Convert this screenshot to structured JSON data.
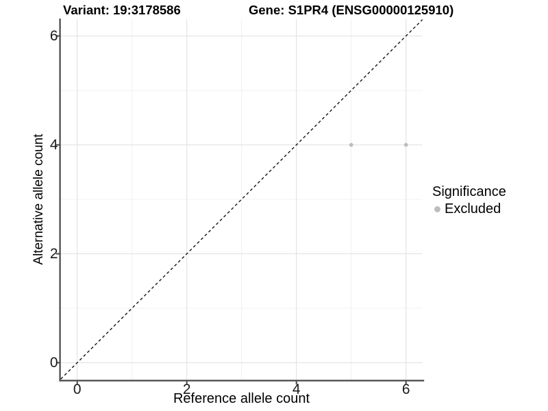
{
  "titles": {
    "variant": "Variant: 19:3178586",
    "gene": "Gene: S1PR4 (ENSG00000125910)"
  },
  "axes": {
    "x": {
      "label": "Reference allele count",
      "ticks": [
        0,
        2,
        4,
        6
      ],
      "minor_ticks": [
        1,
        3,
        5
      ]
    },
    "y": {
      "label": "Alternative allele count",
      "ticks": [
        0,
        2,
        4,
        6
      ],
      "minor_ticks": [
        1,
        3,
        5
      ]
    }
  },
  "legend": {
    "title": "Significance",
    "items": [
      {
        "label": "Excluded",
        "color": "#bdbdbd"
      }
    ]
  },
  "colors": {
    "point_excluded": "#bdbdbd",
    "axis_line": "#464646",
    "major_grid": "#e4e4e4",
    "minor_grid": "#f0f0f0",
    "reference_line": "#141414",
    "background": "#ffffff"
  },
  "chart_data": {
    "type": "scatter",
    "title": "Variant: 19:3178586 | Gene: S1PR4 (ENSG00000125910)",
    "xlabel": "Reference allele count",
    "ylabel": "Alternative allele count",
    "xlim": [
      -0.3,
      6.3
    ],
    "ylim": [
      -0.3,
      6.3
    ],
    "x_ticks": [
      0,
      2,
      4,
      6
    ],
    "y_ticks": [
      0,
      2,
      4,
      6
    ],
    "grid": "on",
    "legend_title": "Significance",
    "legend_position": "right",
    "series": [
      {
        "name": "Excluded",
        "color": "#bdbdbd",
        "points": [
          [
            5,
            4
          ],
          [
            6,
            4
          ]
        ]
      }
    ],
    "reference_line": {
      "type": "identity y=x",
      "style": "dashed",
      "color": "#141414"
    }
  }
}
